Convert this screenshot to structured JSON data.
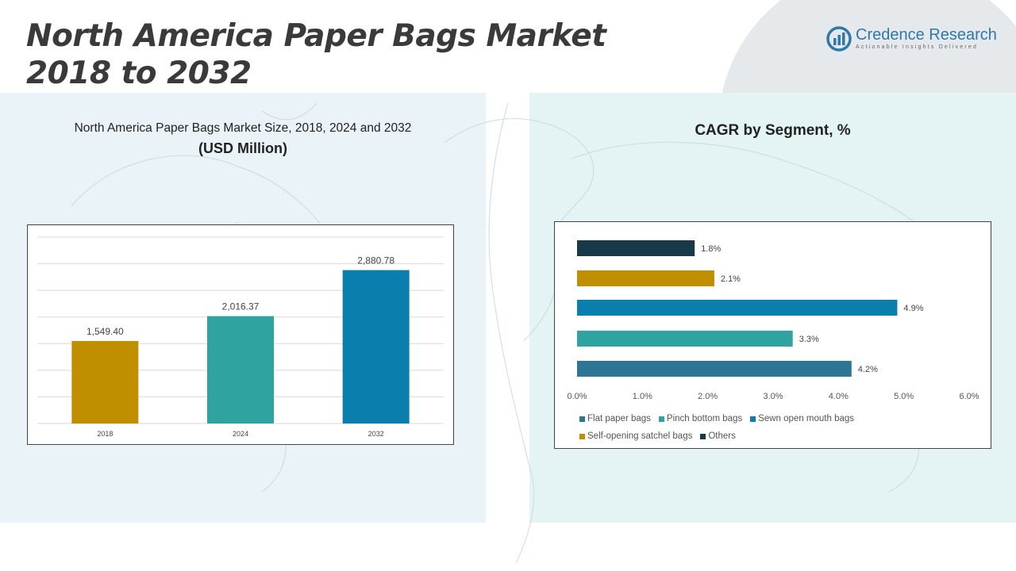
{
  "header": {
    "title_line1": "North America Paper Bags Market",
    "title_line2": "2018 to 2032"
  },
  "logo": {
    "name": "Credence Research",
    "tagline": "Actionable Insights Delivered",
    "icon": "credence-logo-mark"
  },
  "left_panel": {
    "subtitle": "North America Paper Bags Market Size, 2018, 2024 and 2032",
    "unit": "(USD Million)"
  },
  "right_panel": {
    "title": "CAGR by Segment, %"
  },
  "colors": {
    "gold": "#bf8f00",
    "teal": "#2fa3a0",
    "blue": "#0a7fae",
    "steel": "#2d7594",
    "navy": "#17394a"
  },
  "chart_data": [
    {
      "type": "bar",
      "title": "North America Paper Bags Market Size, 2018, 2024 and 2032",
      "ylabel": "(USD Million)",
      "categories": [
        "2018",
        "2024",
        "2032"
      ],
      "values": [
        1549.4,
        2016.37,
        2880.78
      ],
      "value_labels": [
        "1,549.40",
        "2,016.37",
        "2,880.78"
      ],
      "bar_colors": [
        "#bf8f00",
        "#2fa3a0",
        "#0a7fae"
      ],
      "ylim": [
        0,
        3500
      ],
      "grid": true
    },
    {
      "type": "bar",
      "orientation": "horizontal",
      "title": "CAGR by Segment, %",
      "categories": [
        "Flat paper bags",
        "Pinch bottom bags",
        "Sewn open mouth bags",
        "Self-opening satchel bags",
        "Others"
      ],
      "values": [
        4.2,
        3.3,
        4.9,
        2.1,
        1.8
      ],
      "value_labels": [
        "4.2%",
        "3.3%",
        "4.9%",
        "2.1%",
        "1.8%"
      ],
      "colors": [
        "#2d7594",
        "#2fa3a0",
        "#0a7fae",
        "#bf8f00",
        "#17394a"
      ],
      "xlim": [
        0,
        6
      ],
      "xticks": [
        "0.0%",
        "1.0%",
        "2.0%",
        "3.0%",
        "4.0%",
        "5.0%",
        "6.0%"
      ],
      "grid": false,
      "legend": "bottom"
    }
  ]
}
